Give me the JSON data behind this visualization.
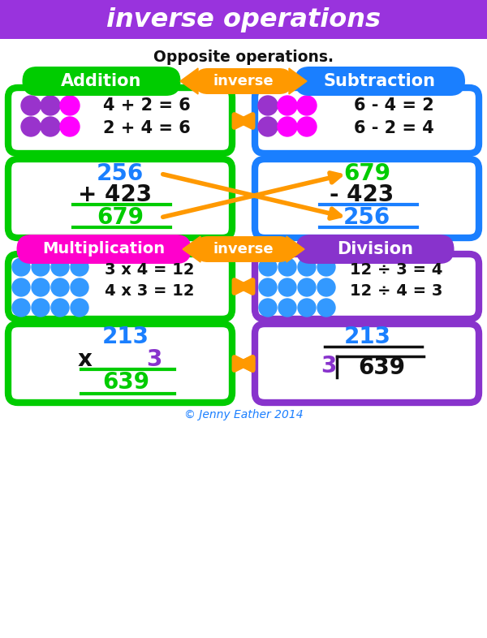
{
  "title": "inverse operations",
  "subtitle": "Opposite operations.",
  "bg_color": "#ffffff",
  "title_bg": "#9933dd",
  "title_color": "#ffffff",
  "green": "#00cc00",
  "blue": "#1a7fff",
  "magenta": "#ff00cc",
  "purple": "#8833cc",
  "orange": "#ff9900",
  "dark": "#111111",
  "dot_purple": "#9933cc",
  "dot_magenta": "#ff00ff",
  "dot_blue": "#3399ff",
  "copyright": "© Jenny Eather 2014"
}
